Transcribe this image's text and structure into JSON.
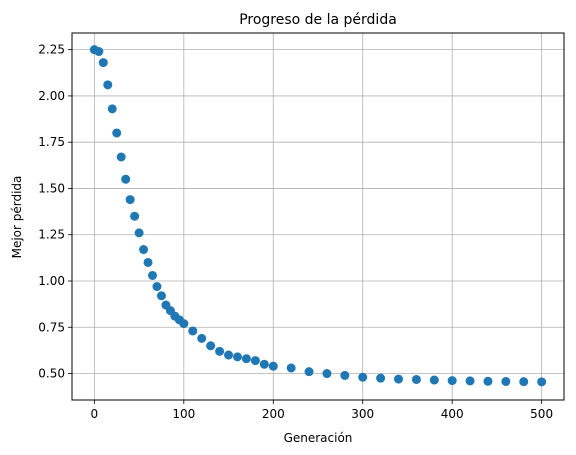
{
  "chart_data": {
    "type": "scatter",
    "title": "Progreso de la pérdida",
    "xlabel": "Generación",
    "ylabel": "Mejor pérdida",
    "xlim": [
      -25,
      525
    ],
    "ylim": [
      0.357,
      2.34
    ],
    "xticks": [
      0,
      100,
      200,
      300,
      400,
      500
    ],
    "xtick_labels": [
      "0",
      "100",
      "200",
      "300",
      "400",
      "500"
    ],
    "yticks": [
      0.5,
      0.75,
      1.0,
      1.25,
      1.5,
      1.75,
      2.0,
      2.25
    ],
    "ytick_labels": [
      "0.50",
      "0.75",
      "1.00",
      "1.25",
      "1.50",
      "1.75",
      "2.00",
      "2.25"
    ],
    "grid": true,
    "marker_color": "#1f77b4",
    "series": [
      {
        "x": [
          0,
          5,
          10,
          15,
          20,
          25,
          30,
          35,
          40,
          45,
          50,
          55,
          60,
          65,
          70,
          75,
          80,
          85,
          90,
          95,
          100,
          110,
          120,
          130,
          140,
          150,
          160,
          170,
          180,
          190,
          200,
          220,
          240,
          260,
          280,
          300,
          320,
          340,
          360,
          380,
          400,
          420,
          440,
          460,
          480,
          500
        ],
        "y": [
          2.25,
          2.24,
          2.18,
          2.06,
          1.93,
          1.8,
          1.67,
          1.55,
          1.44,
          1.35,
          1.26,
          1.17,
          1.1,
          1.03,
          0.97,
          0.92,
          0.87,
          0.84,
          0.81,
          0.79,
          0.77,
          0.73,
          0.69,
          0.65,
          0.62,
          0.6,
          0.59,
          0.58,
          0.57,
          0.55,
          0.54,
          0.53,
          0.51,
          0.5,
          0.49,
          0.48,
          0.475,
          0.47,
          0.468,
          0.465,
          0.462,
          0.46,
          0.458,
          0.457,
          0.456,
          0.455
        ]
      }
    ]
  }
}
